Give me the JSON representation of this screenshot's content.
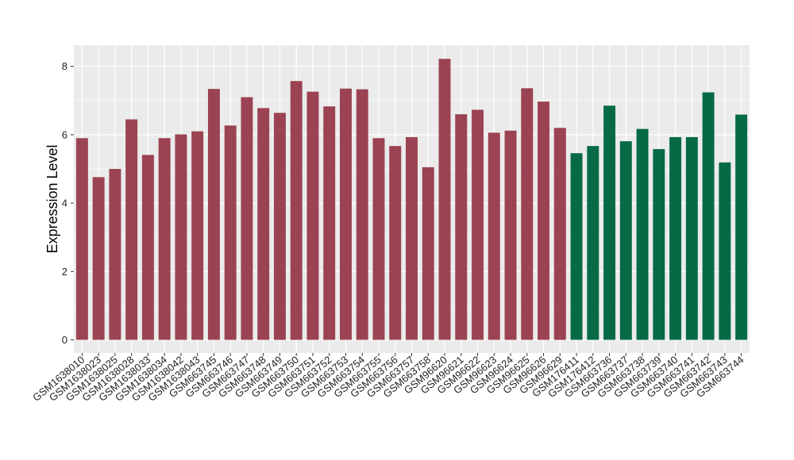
{
  "chart_data": {
    "type": "bar",
    "title": "",
    "xlabel": "",
    "ylabel": "Expression Level",
    "ylim": [
      0,
      8.6
    ],
    "yticks": [
      0,
      2,
      4,
      6,
      8
    ],
    "grid": true,
    "colors": {
      "group_a": "#9B4352",
      "group_b": "#066A45",
      "panel_bg": "#EBEBEB",
      "grid": "#FFFFFF"
    },
    "categories": [
      "GSM1638010",
      "GSM1638023",
      "GSM1638025",
      "GSM1638028",
      "GSM1638033",
      "GSM1638034",
      "GSM1638042",
      "GSM1638043",
      "GSM663745",
      "GSM663746",
      "GSM663747",
      "GSM663748",
      "GSM663749",
      "GSM663750",
      "GSM663751",
      "GSM663752",
      "GSM663753",
      "GSM663754",
      "GSM663755",
      "GSM663756",
      "GSM663757",
      "GSM663758",
      "GSM96620",
      "GSM96621",
      "GSM96622",
      "GSM96623",
      "GSM96624",
      "GSM96625",
      "GSM96626",
      "GSM96629",
      "GSM176411",
      "GSM176412",
      "GSM663736",
      "GSM663737",
      "GSM663738",
      "GSM663739",
      "GSM663740",
      "GSM663741",
      "GSM663742",
      "GSM663743",
      "GSM663744"
    ],
    "values": [
      5.9,
      4.76,
      5.0,
      6.45,
      5.41,
      5.9,
      6.01,
      6.1,
      7.34,
      6.27,
      7.1,
      6.78,
      6.64,
      7.57,
      7.26,
      6.83,
      7.35,
      7.33,
      5.9,
      5.67,
      5.93,
      5.05,
      8.22,
      6.6,
      6.73,
      6.06,
      6.12,
      7.36,
      6.97,
      6.2,
      5.46,
      5.67,
      6.85,
      5.81,
      6.17,
      5.58,
      5.93,
      5.93,
      7.24,
      5.19,
      6.59
    ],
    "groups": [
      "a",
      "a",
      "a",
      "a",
      "a",
      "a",
      "a",
      "a",
      "a",
      "a",
      "a",
      "a",
      "a",
      "a",
      "a",
      "a",
      "a",
      "a",
      "a",
      "a",
      "a",
      "a",
      "a",
      "a",
      "a",
      "a",
      "a",
      "a",
      "a",
      "a",
      "b",
      "b",
      "b",
      "b",
      "b",
      "b",
      "b",
      "b",
      "b",
      "b",
      "b"
    ]
  }
}
